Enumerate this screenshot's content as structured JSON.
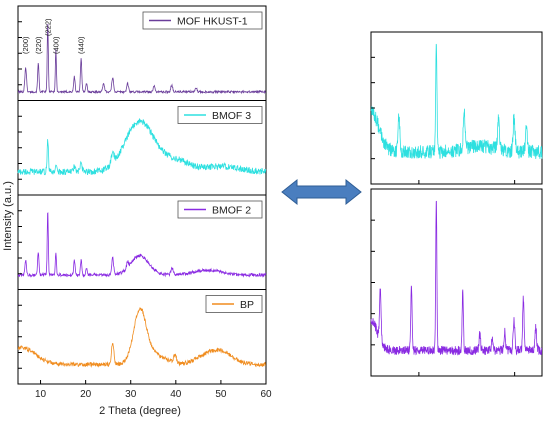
{
  "figure": {
    "arrow_color": "#4a7ebf",
    "arrow_icon": "double-headed-arrow"
  },
  "chart_data": [
    {
      "type": "line",
      "title": "",
      "xlabel": "2 Theta (degree)",
      "ylabel": "Intensity (a.u.)",
      "xlim": [
        5,
        60
      ],
      "xticks": [
        10,
        20,
        30,
        40,
        50,
        60
      ],
      "grid": false,
      "legend_position": "top-right",
      "panels": [
        {
          "name": "MOF HKUST-1",
          "color": "#6a3d9a",
          "baseline": 0.08,
          "noise": 0.015,
          "peaks": [
            [
              6.7,
              0.35,
              0.18
            ],
            [
              9.5,
              0.4,
              0.15
            ],
            [
              11.6,
              1.0,
              0.12
            ],
            [
              13.4,
              0.6,
              0.12
            ],
            [
              17.5,
              0.22,
              0.15
            ],
            [
              19.0,
              0.48,
              0.15
            ],
            [
              20.2,
              0.12,
              0.15
            ],
            [
              24.0,
              0.12,
              0.2
            ],
            [
              26.0,
              0.2,
              0.2
            ],
            [
              29.3,
              0.12,
              0.2
            ],
            [
              35.2,
              0.08,
              0.2
            ],
            [
              39.1,
              0.1,
              0.2
            ],
            [
              44.5,
              0.06,
              0.2
            ]
          ],
          "broad": [],
          "labels": [
            {
              "text": "(200)",
              "x": 6.7
            },
            {
              "text": "(220)",
              "x": 9.5
            },
            {
              "text": "(222)",
              "x": 11.6
            },
            {
              "text": "(400)",
              "x": 13.4
            },
            {
              "text": "(440)",
              "x": 19.0
            }
          ]
        },
        {
          "name": "BMOF 3",
          "color": "#2ee0e0",
          "baseline": 0.22,
          "noise": 0.035,
          "peaks": [
            [
              11.6,
              0.35,
              0.15
            ],
            [
              13.4,
              0.08,
              0.15
            ],
            [
              17.5,
              0.06,
              0.2
            ],
            [
              19.0,
              0.1,
              0.2
            ],
            [
              26.0,
              0.12,
              0.3
            ]
          ],
          "broad": [
            [
              32.0,
              0.55,
              3.2
            ],
            [
              40.0,
              0.12,
              3.0
            ],
            [
              50.0,
              0.06,
              4.0
            ]
          ],
          "labels": []
        },
        {
          "name": "BMOF 2",
          "color": "#8a2be2",
          "baseline": 0.15,
          "noise": 0.02,
          "peaks": [
            [
              6.7,
              0.2,
              0.15
            ],
            [
              9.5,
              0.3,
              0.15
            ],
            [
              11.6,
              0.85,
              0.12
            ],
            [
              13.4,
              0.3,
              0.12
            ],
            [
              17.5,
              0.2,
              0.15
            ],
            [
              19.0,
              0.2,
              0.15
            ],
            [
              20.2,
              0.08,
              0.15
            ],
            [
              26.0,
              0.22,
              0.2
            ],
            [
              29.3,
              0.08,
              0.2
            ],
            [
              39.2,
              0.08,
              0.3
            ]
          ],
          "broad": [
            [
              32.0,
              0.25,
              2.0
            ],
            [
              47.0,
              0.06,
              3.0
            ]
          ],
          "labels": []
        },
        {
          "name": "BP",
          "color": "#f08c1e",
          "baseline": 0.2,
          "noise": 0.025,
          "peaks": [
            [
              26.0,
              0.28,
              0.25
            ],
            [
              39.8,
              0.1,
              0.3
            ]
          ],
          "broad": [
            [
              32.0,
              0.62,
              1.4
            ],
            [
              6.0,
              0.2,
              3.0
            ],
            [
              35.0,
              0.12,
              2.5
            ],
            [
              47.0,
              0.1,
              2.5
            ],
            [
              50.5,
              0.12,
              2.5
            ]
          ],
          "labels": []
        }
      ]
    },
    {
      "type": "line",
      "title": "",
      "xlabel": "",
      "ylabel": "",
      "xlim": [
        5,
        60
      ],
      "grid": false,
      "description_of_content": "zoomed views of two diffraction patterns",
      "panels": [
        {
          "name": "zoom-cyan",
          "color": "#2ee0e0",
          "baseline": 0.25,
          "noise": 0.06,
          "peaks": [
            [
              26.0,
              1.0,
              0.2
            ],
            [
              14.0,
              0.3,
              0.3
            ],
            [
              35.0,
              0.3,
              0.3
            ],
            [
              46.0,
              0.25,
              0.3
            ],
            [
              51.0,
              0.3,
              0.3
            ],
            [
              55.0,
              0.2,
              0.3
            ]
          ],
          "broad": [
            [
              5.0,
              0.35,
              2.5
            ],
            [
              40.0,
              0.05,
              5.0
            ]
          ]
        },
        {
          "name": "zoom-purple",
          "color": "#8a2be2",
          "baseline": 0.15,
          "noise": 0.03,
          "peaks": [
            [
              8.0,
              0.35,
              0.25
            ],
            [
              18.0,
              0.45,
              0.2
            ],
            [
              26.0,
              1.0,
              0.18
            ],
            [
              34.5,
              0.4,
              0.2
            ],
            [
              40.0,
              0.1,
              0.25
            ],
            [
              44.0,
              0.08,
              0.25
            ],
            [
              48.0,
              0.12,
              0.25
            ],
            [
              51.0,
              0.2,
              0.25
            ],
            [
              54.0,
              0.35,
              0.22
            ],
            [
              58.0,
              0.15,
              0.25
            ]
          ],
          "broad": [
            [
              5.0,
              0.2,
              2.0
            ]
          ]
        }
      ]
    }
  ]
}
